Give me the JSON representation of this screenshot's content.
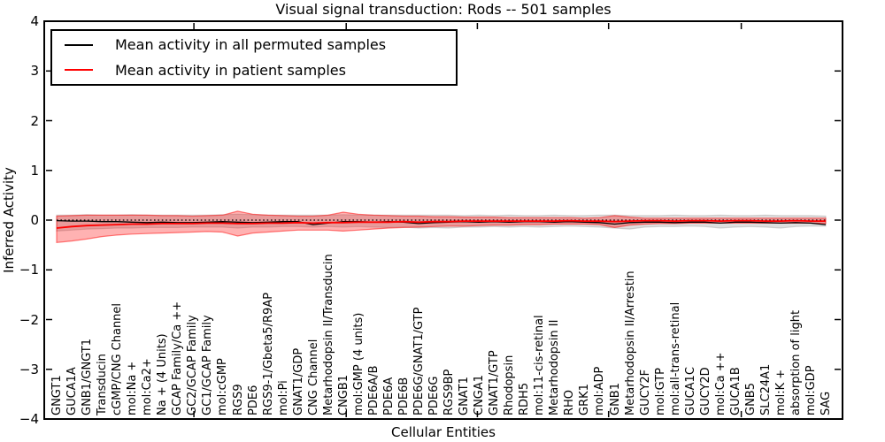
{
  "chart_data": {
    "type": "line",
    "title": "Visual signal transduction: Rods -- 501 samples",
    "xlabel": "Cellular Entities",
    "ylabel": "Inferred Activity",
    "ylim": [
      -4,
      4
    ],
    "ytick_values": [
      4,
      3,
      2,
      1,
      0,
      -1,
      -2,
      -3,
      -4
    ],
    "ytick_labels": [
      "4",
      "3",
      "2",
      "1",
      "0",
      "−1",
      "−2",
      "−3",
      "−4"
    ],
    "xtick_positions_idx": [
      9.1,
      19.2,
      27.9,
      36.6,
      45.4
    ],
    "grid": false,
    "legend_position": "upper left",
    "legend": [
      {
        "label": "Mean activity in all permuted samples",
        "color": "#000000"
      },
      {
        "label": "Mean activity in patient samples",
        "color": "#ff0000"
      }
    ],
    "zero_line": {
      "y": 0,
      "style": "dotted",
      "color": "#000000"
    },
    "categories": [
      "GNGT1",
      "GUCA1A",
      "GNB1/GNGT1",
      "Transducin",
      "cGMP/CNG Channel",
      "mol:Na +",
      "mol:Ca2+",
      "Na + (4 Units)",
      "GCAP Family/Ca ++",
      "GC2/GCAP Family",
      "GC1/GCAP Family",
      "mol:cGMP",
      "RGS9",
      "PDE6",
      "RGS9-1/Gbeta5/R9AP",
      "mol:Pi",
      "GNAT1/GDP",
      "CNG Channel",
      "Metarhodopsin II/Transducin",
      "CNGB1",
      "mol:GMP (4 units)",
      "PDE6A/B",
      "PDE6A",
      "PDE6B",
      "PDE6G/GNAT1/GTP",
      "PDE6G",
      "RGS9BP",
      "GNAT1",
      "CNGA1",
      "GNAT1/GTP",
      "Rhodopsin",
      "RDH5",
      "mol:11-cis-retinal",
      "Metarhodopsin II",
      "RHO",
      "GRK1",
      "mol:ADP",
      "GNB1",
      "Metarhodopsin II/Arrestin",
      "GUCY2F",
      "mol:GTP",
      "mol:all-trans-retinal",
      "GUCA1C",
      "GUCY2D",
      "mol:Ca ++",
      "GUCA1B",
      "GNB5",
      "SLC24A1",
      "mol:K +",
      "absorption of light",
      "mol:GDP",
      "SAG"
    ],
    "series": [
      {
        "name": "Mean activity in all permuted samples",
        "color": "#000000",
        "width": 1.3,
        "values": [
          -0.01,
          -0.02,
          -0.02,
          -0.03,
          -0.03,
          -0.04,
          -0.05,
          -0.04,
          -0.05,
          -0.05,
          -0.04,
          -0.03,
          -0.04,
          -0.05,
          -0.04,
          -0.03,
          -0.03,
          -0.09,
          -0.06,
          -0.03,
          -0.03,
          -0.04,
          -0.03,
          -0.04,
          -0.07,
          -0.05,
          -0.04,
          -0.03,
          -0.04,
          -0.03,
          -0.04,
          -0.03,
          -0.03,
          -0.04,
          -0.03,
          -0.04,
          -0.05,
          -0.08,
          -0.05,
          -0.04,
          -0.04,
          -0.05,
          -0.04,
          -0.04,
          -0.06,
          -0.04,
          -0.04,
          -0.05,
          -0.06,
          -0.05,
          -0.06,
          -0.09
        ]
      },
      {
        "name": "Mean activity in patient samples",
        "color": "#ff0000",
        "width": 1.8,
        "values": [
          -0.16,
          -0.13,
          -0.11,
          -0.1,
          -0.09,
          -0.08,
          -0.08,
          -0.07,
          -0.07,
          -0.07,
          -0.06,
          -0.06,
          -0.07,
          -0.07,
          -0.06,
          -0.06,
          -0.05,
          -0.06,
          -0.05,
          -0.05,
          -0.04,
          -0.04,
          -0.04,
          -0.03,
          -0.04,
          -0.03,
          -0.03,
          -0.02,
          -0.02,
          -0.02,
          -0.02,
          -0.02,
          -0.02,
          -0.02,
          -0.01,
          -0.02,
          -0.02,
          -0.03,
          -0.02,
          -0.01,
          -0.01,
          -0.02,
          -0.01,
          -0.01,
          -0.02,
          -0.01,
          -0.01,
          -0.02,
          -0.02,
          -0.01,
          -0.02,
          -0.02
        ]
      }
    ],
    "bands": [
      {
        "name": "permuted-samples-spread",
        "color": "#808080",
        "fill_opacity": 0.25,
        "edge_opacity": 0.3,
        "upper": [
          0.1,
          0.1,
          0.11,
          0.1,
          0.1,
          0.11,
          0.1,
          0.1,
          0.1,
          0.1,
          0.1,
          0.11,
          0.12,
          0.11,
          0.1,
          0.1,
          0.1,
          0.1,
          0.1,
          0.11,
          0.1,
          0.1,
          0.1,
          0.1,
          0.1,
          0.1,
          0.1,
          0.09,
          0.1,
          0.09,
          0.1,
          0.09,
          0.09,
          0.1,
          0.09,
          0.09,
          0.1,
          0.1,
          0.09,
          0.09,
          0.09,
          0.1,
          0.09,
          0.09,
          0.1,
          0.09,
          0.09,
          0.1,
          0.09,
          0.09,
          0.09,
          0.08
        ],
        "lower": [
          -0.22,
          -0.2,
          -0.18,
          -0.17,
          -0.16,
          -0.16,
          -0.15,
          -0.15,
          -0.15,
          -0.14,
          -0.14,
          -0.14,
          -0.16,
          -0.14,
          -0.14,
          -0.13,
          -0.13,
          -0.14,
          -0.13,
          -0.14,
          -0.13,
          -0.14,
          -0.15,
          -0.14,
          -0.16,
          -0.15,
          -0.16,
          -0.14,
          -0.14,
          -0.13,
          -0.14,
          -0.13,
          -0.14,
          -0.13,
          -0.12,
          -0.13,
          -0.14,
          -0.16,
          -0.18,
          -0.14,
          -0.13,
          -0.13,
          -0.12,
          -0.13,
          -0.16,
          -0.14,
          -0.13,
          -0.14,
          -0.16,
          -0.13,
          -0.12,
          -0.12
        ]
      },
      {
        "name": "patient-samples-spread",
        "color": "#ff0000",
        "fill_opacity": 0.3,
        "edge_opacity": 0.5,
        "upper": [
          0.08,
          0.09,
          0.1,
          0.1,
          0.1,
          0.1,
          0.1,
          0.09,
          0.09,
          0.08,
          0.09,
          0.1,
          0.18,
          0.12,
          0.1,
          0.09,
          0.08,
          0.08,
          0.1,
          0.16,
          0.12,
          0.1,
          0.09,
          0.08,
          0.08,
          0.07,
          0.07,
          0.06,
          0.06,
          0.06,
          0.05,
          0.05,
          0.05,
          0.05,
          0.05,
          0.04,
          0.05,
          0.09,
          0.06,
          0.04,
          0.04,
          0.04,
          0.04,
          0.04,
          0.04,
          0.04,
          0.04,
          0.04,
          0.04,
          0.04,
          0.04,
          0.04
        ],
        "lower": [
          -0.45,
          -0.42,
          -0.38,
          -0.33,
          -0.3,
          -0.28,
          -0.27,
          -0.26,
          -0.25,
          -0.24,
          -0.23,
          -0.24,
          -0.32,
          -0.26,
          -0.24,
          -0.22,
          -0.2,
          -0.2,
          -0.2,
          -0.22,
          -0.2,
          -0.18,
          -0.16,
          -0.15,
          -0.14,
          -0.13,
          -0.12,
          -0.12,
          -0.11,
          -0.1,
          -0.1,
          -0.09,
          -0.09,
          -0.08,
          -0.08,
          -0.08,
          -0.09,
          -0.15,
          -0.1,
          -0.08,
          -0.07,
          -0.07,
          -0.06,
          -0.06,
          -0.06,
          -0.06,
          -0.06,
          -0.06,
          -0.06,
          -0.06,
          -0.06,
          -0.07
        ]
      }
    ]
  }
}
